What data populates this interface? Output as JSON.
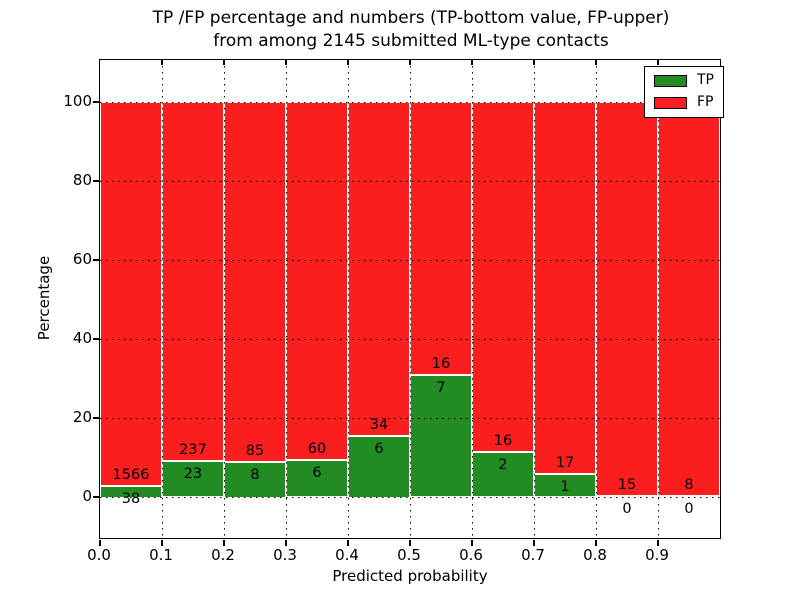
{
  "figure": {
    "title_line1": "TP /FP percentage and numbers (TP-bottom value, FP-upper)",
    "title_line2": "from among 2145 submitted ML-type contacts"
  },
  "chart_data": {
    "type": "bar",
    "subtype": "stacked-100-percent",
    "title": "TP /FP percentage and numbers (TP-bottom value, FP-upper)\nfrom among 2145 submitted ML-type contacts",
    "xlabel": "Predicted probability",
    "ylabel": "Percentage",
    "total_contacts": 2145,
    "bin_edges": [
      0.0,
      0.1,
      0.2,
      0.3,
      0.4,
      0.5,
      0.6,
      0.7,
      0.8,
      0.9,
      1.0
    ],
    "x_tick_labels": [
      "0.0",
      "0.1",
      "0.2",
      "0.3",
      "0.4",
      "0.5",
      "0.6",
      "0.7",
      "0.8",
      "0.9"
    ],
    "y_ticks": [
      0,
      20,
      40,
      60,
      80,
      100
    ],
    "y_tick_labels": [
      "0",
      "20",
      "40",
      "60",
      "80",
      "100"
    ],
    "xlim": [
      0.0,
      1.0
    ],
    "ylim": [
      -10.5,
      110.5
    ],
    "grid": true,
    "grid_linestyle": "dotted",
    "series": [
      {
        "name": "TP",
        "color": "#228b22",
        "counts": [
          38,
          23,
          8,
          6,
          6,
          7,
          2,
          1,
          0,
          0
        ]
      },
      {
        "name": "FP",
        "color": "#fa1e1e",
        "counts": [
          1566,
          237,
          85,
          60,
          34,
          16,
          16,
          17,
          15,
          8
        ]
      }
    ],
    "tp_percent_of_bin": [
      2.37,
      8.85,
      8.6,
      9.09,
      15.0,
      30.43,
      11.11,
      5.56,
      0.0,
      0.0
    ],
    "legend": {
      "position": "upper right",
      "entries": [
        "TP",
        "FP"
      ]
    }
  }
}
